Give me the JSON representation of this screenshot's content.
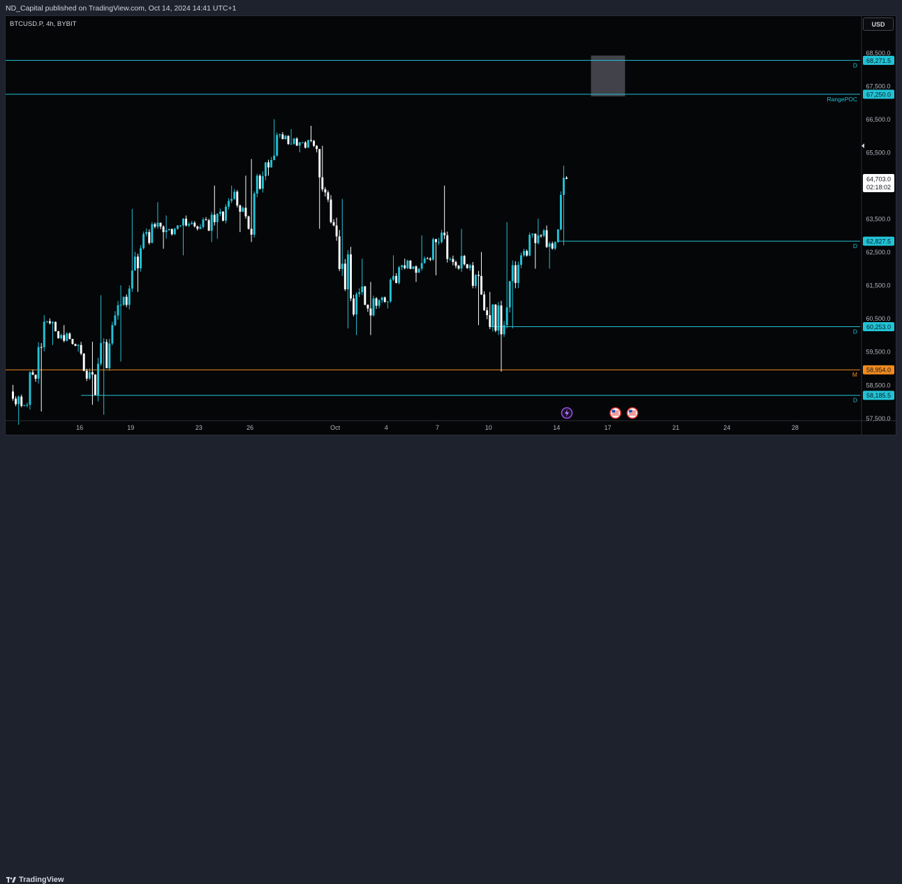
{
  "header": {
    "published_text": "ND_Capital published on TradingView.com, Oct 14, 2024 14:41 UTC+1"
  },
  "symbol_info": {
    "text": "BTCUSD.P, 4h, BYBIT"
  },
  "currency_button": {
    "label": "USD"
  },
  "footer": {
    "brand_name": "TradingView"
  },
  "colors": {
    "background": "#050608",
    "frame": "#1e222d",
    "bull": "#22c3d6",
    "bear": "#ffffff",
    "level_line": "#22c3d6",
    "midline": "#f28b1e",
    "range_box": "#555760",
    "axis_text": "#b2b5be"
  },
  "chart_data": {
    "type": "candlestick",
    "symbol": "BTCUSD.P",
    "timeframe": "4h",
    "exchange": "BYBIT",
    "currency": "USD",
    "ylim": [
      57200,
      69300
    ],
    "price_ticks": [
      {
        "value": 68500,
        "label": "68,500.0"
      },
      {
        "value": 67500,
        "label": "67,500.0"
      },
      {
        "value": 66500,
        "label": "66,500.0"
      },
      {
        "value": 65500,
        "label": "65,500.0"
      },
      {
        "value": 63500,
        "label": "63,500.0"
      },
      {
        "value": 62500,
        "label": "62,500.0"
      },
      {
        "value": 61500,
        "label": "61,500.0"
      },
      {
        "value": 60500,
        "label": "60,500.0"
      },
      {
        "value": 59500,
        "label": "59,500.0"
      },
      {
        "value": 58500,
        "label": "58,500.0"
      },
      {
        "value": 57500,
        "label": "57,500.0"
      }
    ],
    "time_axis": [
      {
        "day": "2024-09-16",
        "label": "16"
      },
      {
        "day": "2024-09-19",
        "label": "19"
      },
      {
        "day": "2024-09-23",
        "label": "23"
      },
      {
        "day": "2024-09-26",
        "label": "26"
      },
      {
        "day": "2024-10-01",
        "label": "Oct"
      },
      {
        "day": "2024-10-04",
        "label": "4"
      },
      {
        "day": "2024-10-07",
        "label": "7"
      },
      {
        "day": "2024-10-10",
        "label": "10"
      },
      {
        "day": "2024-10-14",
        "label": "14"
      },
      {
        "day": "2024-10-17",
        "label": "17"
      },
      {
        "day": "2024-10-21",
        "label": "21"
      },
      {
        "day": "2024-10-24",
        "label": "24"
      },
      {
        "day": "2024-10-28",
        "label": "28"
      }
    ],
    "levels": [
      {
        "price": 68271.5,
        "label": "68,271.5",
        "tag": "D",
        "kind": "line",
        "start": "2024-09-12"
      },
      {
        "price": 67250.0,
        "label": "67,250.0",
        "tag": "RangePOC",
        "kind": "line",
        "start": "2024-09-12"
      },
      {
        "price": 62827.5,
        "label": "62,827.5",
        "tag": "D",
        "kind": "line",
        "start": "2024-10-14"
      },
      {
        "price": 60253.0,
        "label": "60,253.0",
        "tag": "D",
        "kind": "line",
        "start": "2024-10-10"
      },
      {
        "price": 58954.0,
        "label": "58,954.0",
        "tag": "M",
        "kind": "midline",
        "start": "2024-09-12"
      },
      {
        "price": 58185.5,
        "label": "58,185.5",
        "tag": "D",
        "kind": "line",
        "start": "2024-09-16"
      }
    ],
    "range_box": {
      "from": "2024-10-16",
      "to": "2024-10-18",
      "top": 68500,
      "bottom": 67250
    },
    "last_price": {
      "value": 64703.0,
      "label": "64,703.0",
      "countdown": "02:18:02"
    },
    "events": [
      {
        "day": "2024-10-14",
        "type": "lightning"
      },
      {
        "day": "2024-10-17",
        "type": "us-flag"
      },
      {
        "day": "2024-10-18",
        "type": "us-flag"
      }
    ],
    "daily_ohlc": [
      [
        "2024-09-12",
        58300,
        58500,
        57300,
        57900
      ],
      [
        "2024-09-13",
        57900,
        60600,
        57700,
        60400
      ],
      [
        "2024-09-14",
        60400,
        60500,
        59700,
        60000
      ],
      [
        "2024-09-15",
        60000,
        60300,
        59500,
        59700
      ],
      [
        "2024-09-16",
        59700,
        59800,
        57900,
        58200
      ],
      [
        "2024-09-17",
        58200,
        61200,
        57600,
        60300
      ],
      [
        "2024-09-18",
        60300,
        61500,
        59200,
        61400
      ],
      [
        "2024-09-19",
        61400,
        63800,
        61300,
        63100
      ],
      [
        "2024-09-20",
        63100,
        64000,
        62600,
        63100
      ],
      [
        "2024-09-21",
        63100,
        63600,
        62900,
        63300
      ],
      [
        "2024-09-22",
        63300,
        63600,
        62400,
        63200
      ],
      [
        "2024-09-23",
        63200,
        64500,
        62800,
        63400
      ],
      [
        "2024-09-24",
        63400,
        64500,
        62900,
        64100
      ],
      [
        "2024-09-25",
        64100,
        64800,
        63100,
        63200
      ],
      [
        "2024-09-26",
        63200,
        65300,
        62800,
        65200
      ],
      [
        "2024-09-27",
        65200,
        66500,
        64800,
        65900
      ],
      [
        "2024-09-28",
        65900,
        66200,
        65500,
        65800
      ],
      [
        "2024-09-29",
        65800,
        66300,
        65500,
        65600
      ],
      [
        "2024-09-30",
        65600,
        65700,
        63200,
        63300
      ],
      [
        "2024-10-01",
        63300,
        64100,
        60200,
        61100
      ],
      [
        "2024-10-02",
        61100,
        62300,
        60000,
        60800
      ],
      [
        "2024-10-03",
        60800,
        61600,
        60000,
        61000
      ],
      [
        "2024-10-04",
        61000,
        62400,
        60800,
        62100
      ],
      [
        "2024-10-05",
        62100,
        62300,
        61600,
        62000
      ],
      [
        "2024-10-06",
        62000,
        63000,
        61800,
        62800
      ],
      [
        "2024-10-07",
        62800,
        64500,
        62100,
        62200
      ],
      [
        "2024-10-08",
        62200,
        63200,
        61900,
        62100
      ],
      [
        "2024-10-09",
        62100,
        62500,
        60300,
        60600
      ],
      [
        "2024-10-10",
        60600,
        61300,
        58900,
        60300
      ],
      [
        "2024-10-11",
        60300,
        63400,
        60200,
        62400
      ],
      [
        "2024-10-12",
        62400,
        63500,
        62000,
        63000
      ],
      [
        "2024-10-13",
        63000,
        63300,
        62000,
        62800
      ],
      [
        "2024-10-14",
        62800,
        65100,
        62700,
        64703
      ]
    ]
  }
}
